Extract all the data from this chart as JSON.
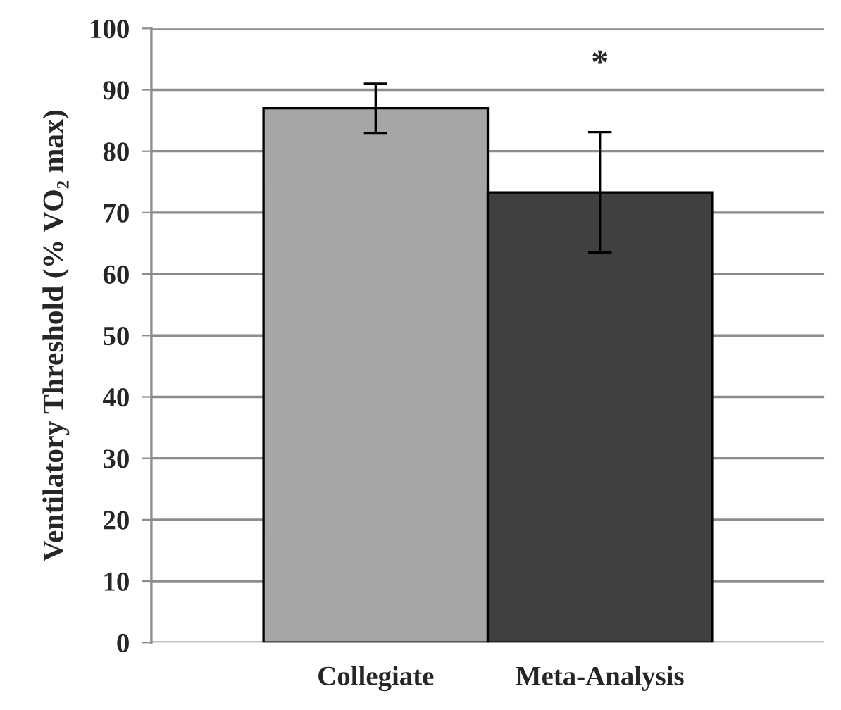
{
  "chart_data": {
    "type": "bar",
    "ylabel": "Ventilatory Threshold (% VO₂ max)",
    "categories": [
      "Collegiate",
      "Meta-Analysis"
    ],
    "values": [
      87,
      73.3
    ],
    "colors": [
      "#a6a6a6",
      "#404040"
    ],
    "errors": [
      4,
      9.8
    ],
    "ylim": [
      0,
      100
    ],
    "yticks": [
      0,
      10,
      20,
      30,
      40,
      50,
      60,
      70,
      80,
      90,
      100
    ],
    "grid": "y",
    "annotations": [
      "*"
    ]
  }
}
